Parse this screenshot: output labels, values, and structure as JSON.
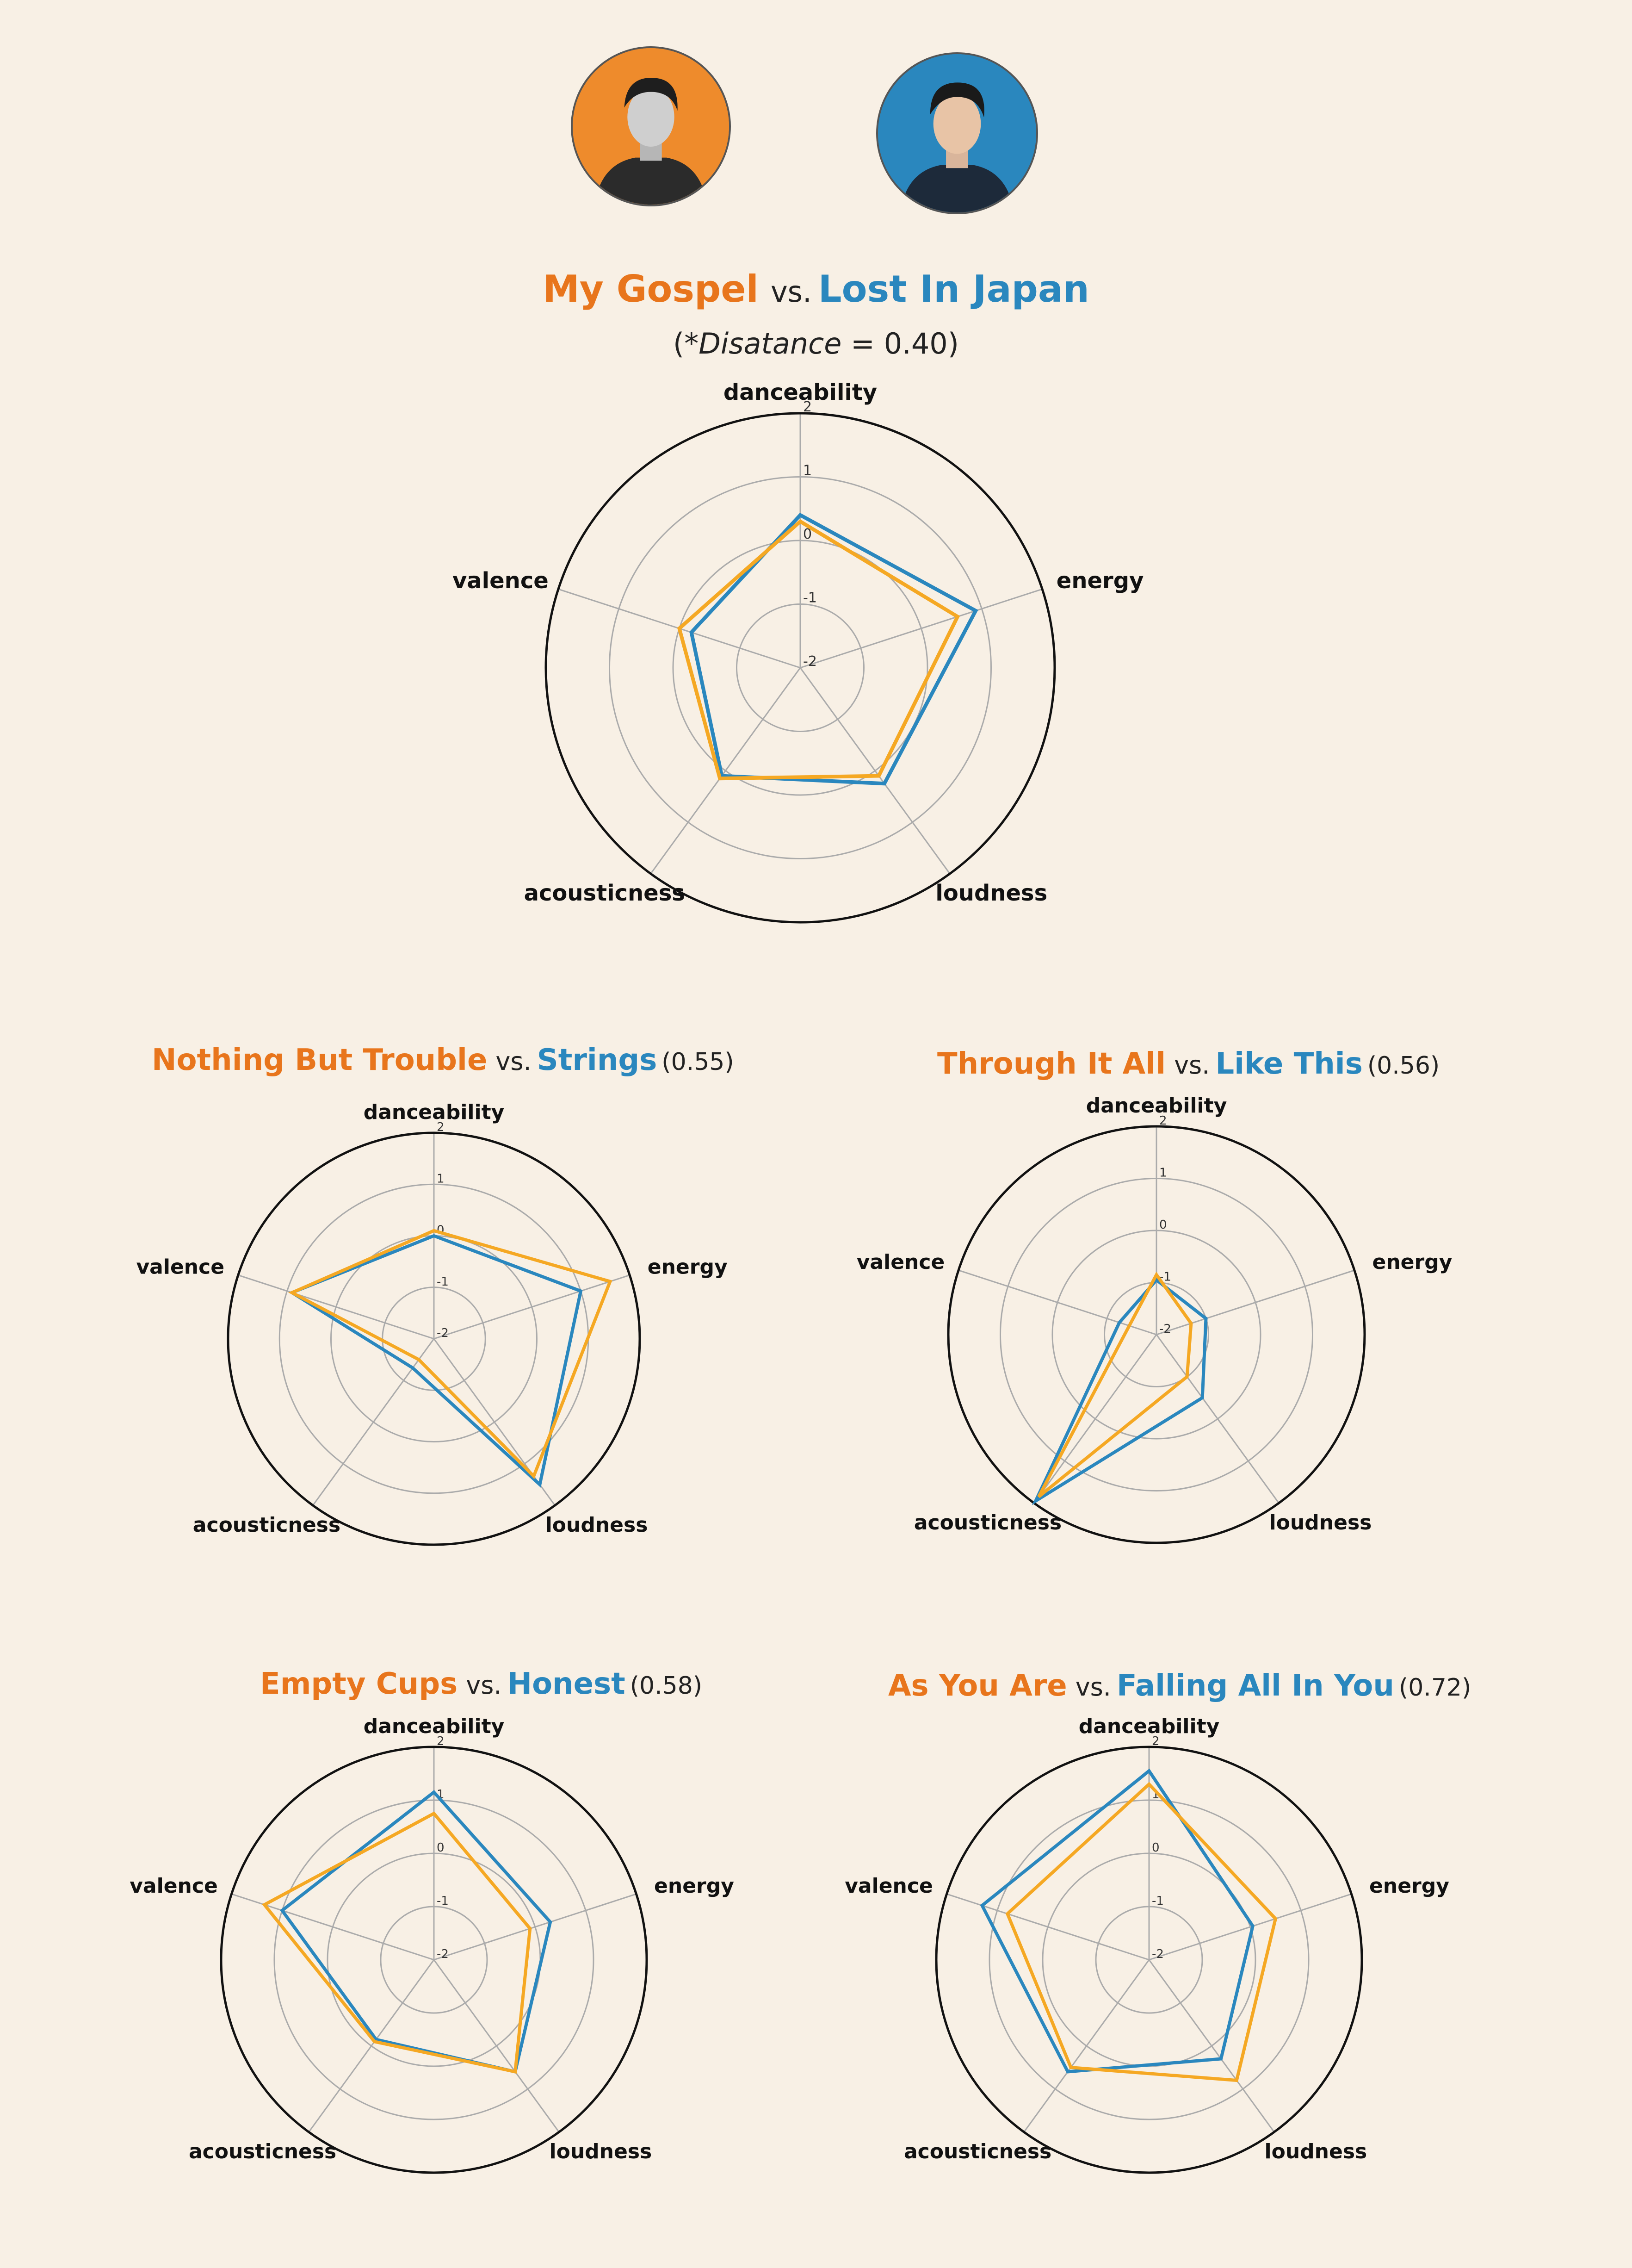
{
  "artists": {
    "left": {
      "color": "#e8751c",
      "icon": "artist-portrait-icon"
    },
    "right": {
      "color": "#2a87be",
      "icon": "artist-portrait-icon"
    }
  },
  "colors": {
    "song_a": "#f5a823",
    "song_b": "#2a87be",
    "title_a": "#e8751c",
    "title_b": "#2a87be"
  },
  "comparisons": [
    {
      "song_a": "My Gospel",
      "vs": "vs.",
      "song_b": "Lost In Japan",
      "subtitle_prefix": "(*",
      "subtitle_label": "Disatance",
      "subtitle_value": " = 0.40)"
    },
    {
      "song_a": "Nothing But Trouble",
      "vs": "vs.",
      "song_b": "Strings",
      "distance": "(0.55)"
    },
    {
      "song_a": "Through It All",
      "vs": "vs.",
      "song_b": "Like This",
      "distance": "(0.56)"
    },
    {
      "song_a": "Empty Cups",
      "vs": "vs.",
      "song_b": "Honest",
      "distance": "(0.58)"
    },
    {
      "song_a": "As You Are",
      "vs": "vs.",
      "song_b": "Falling All In You",
      "distance": "(0.72)"
    }
  ],
  "chart_data": [
    {
      "type": "radar",
      "axes": [
        "danceability",
        "energy",
        "loudness",
        "acousticness",
        "valence"
      ],
      "rlim": [
        -2,
        2
      ],
      "ticks": [
        "2",
        "1",
        "0",
        "-1",
        "-2"
      ],
      "grid": true,
      "series": [
        {
          "name": "My Gospel",
          "values": [
            0.3,
            0.6,
            0.1,
            0.15,
            0.0
          ]
        },
        {
          "name": "Lost In Japan",
          "values": [
            0.4,
            0.9,
            0.25,
            0.1,
            -0.2
          ]
        }
      ]
    },
    {
      "type": "radar",
      "axes": [
        "danceability",
        "energy",
        "loudness",
        "acousticness",
        "valence"
      ],
      "rlim": [
        -2,
        2
      ],
      "ticks": [
        "2",
        "1",
        "0",
        "-1",
        "-2"
      ],
      "grid": true,
      "series": [
        {
          "name": "Nothing But Trouble",
          "values": [
            0.1,
            1.6,
            1.3,
            -1.5,
            0.9
          ]
        },
        {
          "name": "Strings",
          "values": [
            0.0,
            1.0,
            1.5,
            -1.3,
            0.9
          ]
        }
      ]
    },
    {
      "type": "radar",
      "axes": [
        "danceability",
        "energy",
        "loudness",
        "acousticness",
        "valence"
      ],
      "rlim": [
        -2,
        2
      ],
      "ticks": [
        "2",
        "1",
        "0",
        "-1",
        "-2"
      ],
      "grid": true,
      "series": [
        {
          "name": "Through It All",
          "values": [
            -0.85,
            -1.3,
            -1.0,
            1.85,
            -1.45
          ]
        },
        {
          "name": "Like This",
          "values": [
            -0.95,
            -1.0,
            -0.5,
            1.95,
            -1.25
          ]
        }
      ]
    },
    {
      "type": "radar",
      "axes": [
        "danceability",
        "energy",
        "loudness",
        "acousticness",
        "valence"
      ],
      "rlim": [
        -2,
        2
      ],
      "ticks": [
        "2",
        "1",
        "0",
        "-1",
        "-2"
      ],
      "grid": true,
      "series": [
        {
          "name": "Empty Cups",
          "values": [
            0.75,
            -0.1,
            0.6,
            -0.1,
            1.35
          ]
        },
        {
          "name": "Honest",
          "values": [
            1.15,
            0.3,
            0.6,
            -0.15,
            1.0
          ]
        }
      ]
    },
    {
      "type": "radar",
      "axes": [
        "danceability",
        "energy",
        "loudness",
        "acousticness",
        "valence"
      ],
      "rlim": [
        -2,
        2
      ],
      "ticks": [
        "2",
        "1",
        "0",
        "-1",
        "-2"
      ],
      "grid": true,
      "series": [
        {
          "name": "As You Are",
          "values": [
            1.3,
            0.5,
            0.8,
            0.5,
            0.8
          ]
        },
        {
          "name": "Falling All In You",
          "values": [
            1.55,
            0.05,
            0.3,
            0.6,
            1.3
          ]
        }
      ]
    }
  ]
}
